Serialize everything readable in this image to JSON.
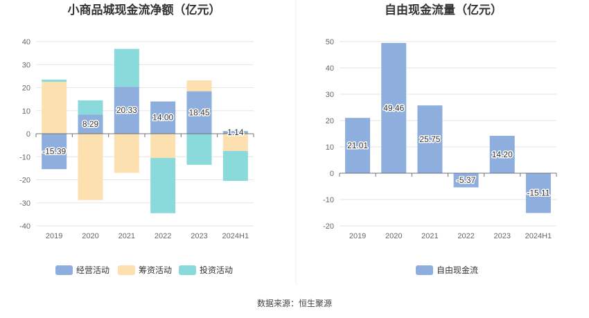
{
  "source_note": "数据来源：恒生聚源",
  "chart_data": [
    {
      "type": "bar",
      "stacked": true,
      "title": "小商品城现金流净额（亿元）",
      "categories": [
        "2019",
        "2020",
        "2021",
        "2022",
        "2023",
        "2024H1"
      ],
      "ylim": [
        -40,
        40
      ],
      "yticks": [
        40,
        30,
        20,
        10,
        0,
        -10,
        -20,
        -30,
        -40
      ],
      "grid": true,
      "legend_position": "bottom",
      "series": [
        {
          "name": "经营活动",
          "color": "#8eaede",
          "values": [
            -15.39,
            8.29,
            20.33,
            14.0,
            18.45,
            1.14
          ],
          "labels": [
            "-15.39",
            "8.29",
            "20.33",
            "14.00",
            "18.45",
            "1.14"
          ]
        },
        {
          "name": "筹资活动",
          "color": "#fde0b0",
          "values": [
            22.5,
            -28.8,
            -17.0,
            -10.5,
            4.7,
            -7.5
          ]
        },
        {
          "name": "投资活动",
          "color": "#8ad9db",
          "values": [
            1.0,
            6.2,
            16.5,
            -24.0,
            -13.5,
            -13.0
          ]
        }
      ]
    },
    {
      "type": "bar",
      "title": "自由现金流量（亿元）",
      "categories": [
        "2019",
        "2020",
        "2021",
        "2022",
        "2023",
        "2024H1"
      ],
      "ylim": [
        -20,
        50
      ],
      "yticks": [
        50,
        40,
        30,
        20,
        10,
        0,
        -10,
        -20
      ],
      "grid": true,
      "legend_position": "bottom",
      "series": [
        {
          "name": "自由现金流",
          "color": "#8eaede",
          "values": [
            21.01,
            49.46,
            25.75,
            -5.37,
            14.2,
            -15.11
          ],
          "labels": [
            "21.01",
            "49.46",
            "25.75",
            "-5.37",
            "14.20",
            "-15.11"
          ]
        }
      ]
    }
  ]
}
